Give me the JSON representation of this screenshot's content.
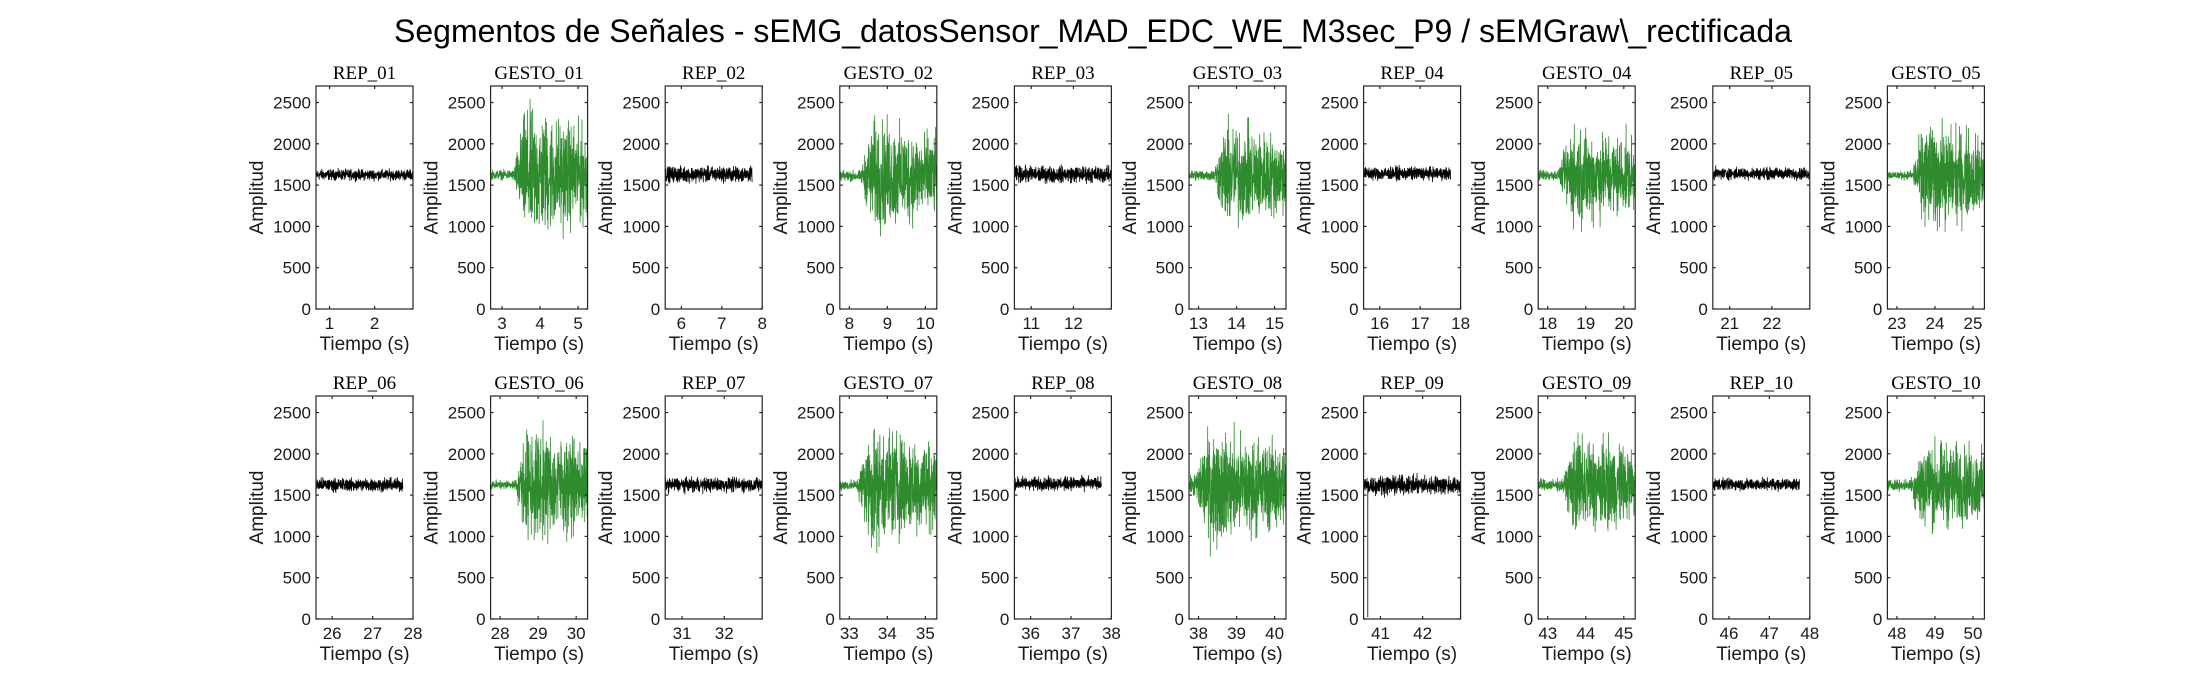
{
  "figure_title": "Segmentos de Señales - sEMG_datosSensor_MAD_EDC_WE_M3sec_P9 / sEMGraw\\_rectificada",
  "colors": {
    "rep": "#000000",
    "gesto": "#2e8b2e",
    "frame": "#262626"
  },
  "chart_data": [
    {
      "type": "line",
      "title": "REP_01",
      "xlabel": "Tiempo (s)",
      "ylabel": "Amplitud",
      "xlim": [
        0.7,
        2.85
      ],
      "ylim": [
        0,
        2700
      ],
      "xticks": [
        1,
        2
      ],
      "yticks": [
        0,
        500,
        1000,
        1500,
        2000,
        2500
      ],
      "color": "rep",
      "x_range": [
        0.7,
        2.85
      ],
      "baseline": 1625,
      "noise_amplitude": 90,
      "burst_amplitude": 0
    },
    {
      "type": "line",
      "title": "GESTO_01",
      "xlabel": "Tiempo (s)",
      "ylabel": "Amplitud",
      "xlim": [
        2.7,
        5.25
      ],
      "ylim": [
        0,
        2700
      ],
      "xticks": [
        3,
        4,
        5
      ],
      "yticks": [
        0,
        500,
        1000,
        1500,
        2000,
        2500
      ],
      "color": "gesto",
      "x_range": [
        2.7,
        5.25
      ],
      "baseline": 1625,
      "noise_amplitude": 80,
      "burst_amplitude": 1100,
      "burst_start": 3.3
    },
    {
      "type": "line",
      "title": "REP_02",
      "xlabel": "Tiempo (s)",
      "ylabel": "Amplitud",
      "xlim": [
        5.6,
        8.0
      ],
      "ylim": [
        0,
        2700
      ],
      "xticks": [
        6,
        7,
        8
      ],
      "yticks": [
        0,
        500,
        1000,
        1500,
        2000,
        2500
      ],
      "color": "rep",
      "x_range": [
        5.6,
        7.75
      ],
      "baseline": 1630,
      "noise_amplitude": 130,
      "burst_amplitude": 0
    },
    {
      "type": "line",
      "title": "GESTO_02",
      "xlabel": "Tiempo (s)",
      "ylabel": "Amplitud",
      "xlim": [
        7.75,
        10.3
      ],
      "ylim": [
        0,
        2700
      ],
      "xticks": [
        8,
        9,
        10
      ],
      "yticks": [
        0,
        500,
        1000,
        1500,
        2000,
        2500
      ],
      "color": "gesto",
      "x_range": [
        7.75,
        10.3
      ],
      "baseline": 1610,
      "noise_amplitude": 90,
      "burst_amplitude": 900,
      "burst_start": 8.3
    },
    {
      "type": "line",
      "title": "REP_03",
      "xlabel": "Tiempo (s)",
      "ylabel": "Amplitud",
      "xlim": [
        10.6,
        12.9
      ],
      "ylim": [
        0,
        2700
      ],
      "xticks": [
        11,
        12
      ],
      "yticks": [
        0,
        500,
        1000,
        1500,
        2000,
        2500
      ],
      "color": "rep",
      "x_range": [
        10.6,
        12.9
      ],
      "baseline": 1630,
      "noise_amplitude": 140,
      "burst_amplitude": 0
    },
    {
      "type": "line",
      "title": "GESTO_03",
      "xlabel": "Tiempo (s)",
      "ylabel": "Amplitud",
      "xlim": [
        12.75,
        15.3
      ],
      "ylim": [
        0,
        2700
      ],
      "xticks": [
        13,
        14,
        15
      ],
      "yticks": [
        0,
        500,
        1000,
        1500,
        2000,
        2500
      ],
      "color": "gesto",
      "x_range": [
        12.75,
        15.3
      ],
      "baseline": 1620,
      "noise_amplitude": 90,
      "burst_amplitude": 850,
      "burst_start": 13.4
    },
    {
      "type": "line",
      "title": "REP_04",
      "xlabel": "Tiempo (s)",
      "ylabel": "Amplitud",
      "xlim": [
        15.6,
        18.0
      ],
      "ylim": [
        0,
        2700
      ],
      "xticks": [
        16,
        17,
        18
      ],
      "yticks": [
        0,
        500,
        1000,
        1500,
        2000,
        2500
      ],
      "color": "rep",
      "x_range": [
        15.6,
        17.75
      ],
      "baseline": 1640,
      "noise_amplitude": 110,
      "burst_amplitude": 0
    },
    {
      "type": "line",
      "title": "GESTO_04",
      "xlabel": "Tiempo (s)",
      "ylabel": "Amplitud",
      "xlim": [
        17.75,
        20.3
      ],
      "ylim": [
        0,
        2700
      ],
      "xticks": [
        18,
        19,
        20
      ],
      "yticks": [
        0,
        500,
        1000,
        1500,
        2000,
        2500
      ],
      "color": "gesto",
      "x_range": [
        17.75,
        20.3
      ],
      "baseline": 1620,
      "noise_amplitude": 90,
      "burst_amplitude": 800,
      "burst_start": 18.3
    },
    {
      "type": "line",
      "title": "REP_05",
      "xlabel": "Tiempo (s)",
      "ylabel": "Amplitud",
      "xlim": [
        20.6,
        22.9
      ],
      "ylim": [
        0,
        2700
      ],
      "xticks": [
        21,
        22
      ],
      "yticks": [
        0,
        500,
        1000,
        1500,
        2000,
        2500
      ],
      "color": "rep",
      "x_range": [
        20.6,
        22.9
      ],
      "baseline": 1640,
      "noise_amplitude": 100,
      "burst_amplitude": 0
    },
    {
      "type": "line",
      "title": "GESTO_05",
      "xlabel": "Tiempo (s)",
      "ylabel": "Amplitud",
      "xlim": [
        22.75,
        25.3
      ],
      "ylim": [
        0,
        2700
      ],
      "xticks": [
        23,
        24,
        25
      ],
      "yticks": [
        0,
        500,
        1000,
        1500,
        2000,
        2500
      ],
      "color": "gesto",
      "x_range": [
        22.75,
        25.3
      ],
      "baseline": 1620,
      "noise_amplitude": 70,
      "burst_amplitude": 900,
      "burst_start": 23.4
    },
    {
      "type": "line",
      "title": "REP_06",
      "xlabel": "Tiempo (s)",
      "ylabel": "Amplitud",
      "xlim": [
        25.6,
        28.0
      ],
      "ylim": [
        0,
        2700
      ],
      "xticks": [
        26,
        27,
        28
      ],
      "yticks": [
        0,
        500,
        1000,
        1500,
        2000,
        2500
      ],
      "color": "rep",
      "x_range": [
        25.6,
        27.75
      ],
      "baseline": 1625,
      "noise_amplitude": 110,
      "burst_amplitude": 0
    },
    {
      "type": "line",
      "title": "GESTO_06",
      "xlabel": "Tiempo (s)",
      "ylabel": "Amplitud",
      "xlim": [
        27.75,
        30.3
      ],
      "ylim": [
        0,
        2700
      ],
      "xticks": [
        28,
        29,
        30
      ],
      "yticks": [
        0,
        500,
        1000,
        1500,
        2000,
        2500
      ],
      "color": "gesto",
      "x_range": [
        27.75,
        30.3
      ],
      "baseline": 1625,
      "noise_amplitude": 80,
      "burst_amplitude": 950,
      "burst_start": 28.4
    },
    {
      "type": "line",
      "title": "REP_07",
      "xlabel": "Tiempo (s)",
      "ylabel": "Amplitud",
      "xlim": [
        30.6,
        32.9
      ],
      "ylim": [
        0,
        2700
      ],
      "xticks": [
        31,
        32
      ],
      "yticks": [
        0,
        500,
        1000,
        1500,
        2000,
        2500
      ],
      "color": "rep",
      "x_range": [
        30.6,
        32.9
      ],
      "baseline": 1625,
      "noise_amplitude": 120,
      "burst_amplitude": 0
    },
    {
      "type": "line",
      "title": "GESTO_07",
      "xlabel": "Tiempo (s)",
      "ylabel": "Amplitud",
      "xlim": [
        32.75,
        35.3
      ],
      "ylim": [
        0,
        2700
      ],
      "xticks": [
        33,
        34,
        35
      ],
      "yticks": [
        0,
        500,
        1000,
        1500,
        2000,
        2500
      ],
      "color": "gesto",
      "x_range": [
        32.75,
        35.3
      ],
      "baseline": 1620,
      "noise_amplitude": 90,
      "burst_amplitude": 1000,
      "burst_start": 33.2
    },
    {
      "type": "line",
      "title": "REP_08",
      "xlabel": "Tiempo (s)",
      "ylabel": "Amplitud",
      "xlim": [
        35.6,
        38.0
      ],
      "ylim": [
        0,
        2700
      ],
      "xticks": [
        36,
        37,
        38
      ],
      "yticks": [
        0,
        500,
        1000,
        1500,
        2000,
        2500
      ],
      "color": "rep",
      "x_range": [
        35.6,
        37.75
      ],
      "baseline": 1640,
      "noise_amplitude": 110,
      "burst_amplitude": 0
    },
    {
      "type": "line",
      "title": "GESTO_08",
      "xlabel": "Tiempo (s)",
      "ylabel": "Amplitud",
      "xlim": [
        37.75,
        40.3
      ],
      "ylim": [
        0,
        2700
      ],
      "xticks": [
        38,
        39,
        40
      ],
      "yticks": [
        0,
        500,
        1000,
        1500,
        2000,
        2500
      ],
      "color": "gesto",
      "x_range": [
        37.75,
        40.3
      ],
      "baseline": 1610,
      "noise_amplitude": 150,
      "burst_amplitude": 850,
      "burst_start": 37.85
    },
    {
      "type": "line",
      "title": "REP_09",
      "xlabel": "Tiempo (s)",
      "ylabel": "Amplitud",
      "xlim": [
        40.6,
        42.9
      ],
      "ylim": [
        0,
        2700
      ],
      "xticks": [
        41,
        42
      ],
      "yticks": [
        0,
        500,
        1000,
        1500,
        2000,
        2500
      ],
      "color": "rep",
      "x_range": [
        40.6,
        42.9
      ],
      "baseline": 1620,
      "noise_amplitude": 160,
      "burst_amplitude": 0,
      "spike": {
        "x": 40.7,
        "y": 20
      }
    },
    {
      "type": "line",
      "title": "GESTO_09",
      "xlabel": "Tiempo (s)",
      "ylabel": "Amplitud",
      "xlim": [
        42.75,
        45.3
      ],
      "ylim": [
        0,
        2700
      ],
      "xticks": [
        43,
        44,
        45
      ],
      "yticks": [
        0,
        500,
        1000,
        1500,
        2000,
        2500
      ],
      "color": "gesto",
      "x_range": [
        42.75,
        45.3
      ],
      "baseline": 1620,
      "noise_amplitude": 100,
      "burst_amplitude": 800,
      "burst_start": 43.4
    },
    {
      "type": "line",
      "title": "REP_10",
      "xlabel": "Tiempo (s)",
      "ylabel": "Amplitud",
      "xlim": [
        45.6,
        48.0
      ],
      "ylim": [
        0,
        2700
      ],
      "xticks": [
        46,
        47,
        48
      ],
      "yticks": [
        0,
        500,
        1000,
        1500,
        2000,
        2500
      ],
      "color": "rep",
      "x_range": [
        45.6,
        47.75
      ],
      "baseline": 1630,
      "noise_amplitude": 100,
      "burst_amplitude": 0
    },
    {
      "type": "line",
      "title": "GESTO_10",
      "xlabel": "Tiempo (s)",
      "ylabel": "Amplitud",
      "xlim": [
        47.75,
        50.3
      ],
      "ylim": [
        0,
        2700
      ],
      "xticks": [
        48,
        49,
        50
      ],
      "yticks": [
        0,
        500,
        1000,
        1500,
        2000,
        2500
      ],
      "color": "gesto",
      "x_range": [
        47.75,
        50.3
      ],
      "baseline": 1620,
      "noise_amplitude": 90,
      "burst_amplitude": 750,
      "burst_start": 48.35
    }
  ]
}
